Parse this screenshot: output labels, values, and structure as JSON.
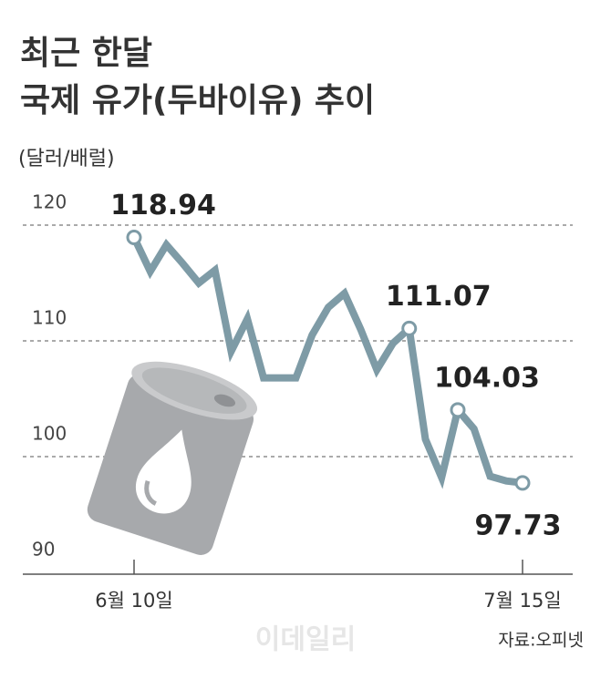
{
  "chart_data": {
    "type": "line",
    "title": "최근 한달",
    "subtitle": "국제 유가(두바이유) 추이",
    "y_label": "(달러/배럴)",
    "source": "자료:오피넷",
    "watermark": "이데일리",
    "categories": [
      "6월 10일",
      null,
      null,
      null,
      null,
      null,
      null,
      null,
      null,
      null,
      null,
      null,
      null,
      null,
      null,
      null,
      null,
      null,
      null,
      null,
      null,
      null,
      null,
      null,
      "7월 15일"
    ],
    "series": [
      {
        "name": "두바이유",
        "color": "#7e9ba6",
        "values": [
          118.94,
          116.0,
          118.3,
          116.7,
          115.0,
          116.1,
          109.1,
          111.9,
          106.8,
          106.8,
          106.8,
          110.5,
          112.9,
          114.1,
          111.0,
          107.5,
          109.8,
          111.07,
          101.5,
          98.2,
          104.03,
          102.4,
          98.3,
          97.9,
          97.73
        ],
        "value_labels": [
          "118.94",
          null,
          null,
          null,
          null,
          null,
          null,
          null,
          null,
          null,
          null,
          null,
          null,
          null,
          null,
          null,
          null,
          "111.07",
          null,
          null,
          "104.03",
          null,
          null,
          null,
          "97.73"
        ]
      }
    ],
    "ylim": [
      90,
      122
    ],
    "yticks": [
      90,
      100,
      110,
      120
    ],
    "grid": true
  }
}
